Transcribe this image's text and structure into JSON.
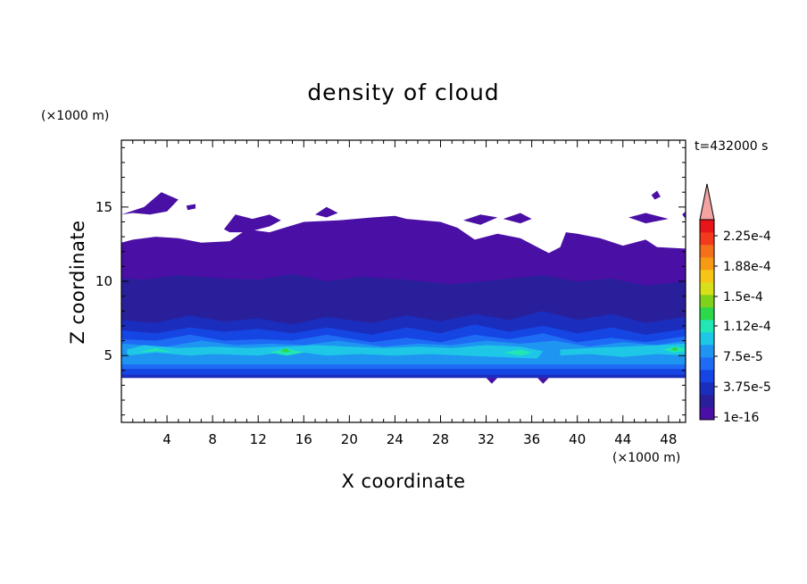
{
  "chart_data": {
    "type": "heatmap",
    "title": "density of cloud",
    "time_label": "t=432000 s",
    "xlabel": "X coordinate",
    "ylabel": "Z coordinate",
    "x_unit": "(×1000 m)",
    "y_unit": "(×1000 m)",
    "xlim": [
      0,
      49.5
    ],
    "ylim": [
      0.5,
      19.5
    ],
    "x_ticks": [
      4,
      8,
      12,
      16,
      20,
      24,
      28,
      32,
      36,
      40,
      44,
      48
    ],
    "y_ticks": [
      5,
      10,
      15
    ],
    "colorbar": {
      "labels": [
        "2.25e-4",
        "1.88e-4",
        "1.5e-4",
        "1.12e-4",
        "7.5e-5",
        "3.75e-5",
        "1e-16"
      ],
      "colors": [
        "#4a0fa5",
        "#2a1f9a",
        "#1a2dbd",
        "#1545e3",
        "#1e6cf5",
        "#1f95f2",
        "#1ec7e6",
        "#22e6b4",
        "#2cd84a",
        "#7ed21c",
        "#d8e01a",
        "#f6c515",
        "#f59a12",
        "#f4701a",
        "#f23a1c",
        "#e8151a"
      ],
      "extend_color": "#f4a3a3"
    },
    "layers": [
      {
        "level": 0,
        "bounds": [
          [
            0,
            3.5
          ],
          [
            49.5,
            3.5
          ],
          [
            49.5,
            12.2
          ],
          [
            47,
            12.3
          ],
          [
            46,
            12.8
          ],
          [
            44,
            12.4
          ],
          [
            42,
            12.9
          ],
          [
            40,
            13.2
          ],
          [
            39,
            13.3
          ],
          [
            38.5,
            12.3
          ],
          [
            37.5,
            11.9
          ],
          [
            36.5,
            12.3
          ],
          [
            35,
            12.9
          ],
          [
            33,
            13.2
          ],
          [
            31,
            12.8
          ],
          [
            29.5,
            13.6
          ],
          [
            28,
            14
          ],
          [
            25,
            14.2
          ],
          [
            24,
            14.4
          ],
          [
            22,
            14.3
          ],
          [
            19,
            14.1
          ],
          [
            16,
            14
          ],
          [
            13,
            13.3
          ],
          [
            11,
            13.5
          ],
          [
            9.5,
            12.7
          ],
          [
            7,
            12.6
          ],
          [
            5,
            12.9
          ],
          [
            3,
            13
          ],
          [
            1,
            12.8
          ],
          [
            0,
            12.6
          ]
        ]
      },
      {
        "level": 0,
        "bounds": [
          [
            0,
            14.5
          ],
          [
            2,
            15
          ],
          [
            3.5,
            16
          ],
          [
            5,
            15.5
          ],
          [
            4,
            14.7
          ],
          [
            2.5,
            14.5
          ],
          [
            1,
            14.6
          ]
        ]
      },
      {
        "level": 0,
        "bounds": [
          [
            5.7,
            15.1
          ],
          [
            6.5,
            15.2
          ],
          [
            6.5,
            14.9
          ],
          [
            5.8,
            14.8
          ]
        ]
      },
      {
        "level": 0,
        "bounds": [
          [
            9,
            13.5
          ],
          [
            10,
            14.5
          ],
          [
            11.5,
            14.2
          ],
          [
            13,
            14.5
          ],
          [
            14,
            14.1
          ],
          [
            13,
            13.7
          ],
          [
            11,
            13.3
          ],
          [
            9.5,
            13.3
          ]
        ]
      },
      {
        "level": 0,
        "bounds": [
          [
            17,
            14.5
          ],
          [
            18,
            15
          ],
          [
            19,
            14.6
          ],
          [
            18,
            14.3
          ]
        ]
      },
      {
        "level": 0,
        "bounds": [
          [
            30,
            14.1
          ],
          [
            31.5,
            14.5
          ],
          [
            33,
            14.3
          ],
          [
            31.5,
            13.8
          ]
        ]
      },
      {
        "level": 0,
        "bounds": [
          [
            33.5,
            14.2
          ],
          [
            35,
            14.6
          ],
          [
            36,
            14.2
          ],
          [
            35,
            13.9
          ]
        ]
      },
      {
        "level": 0,
        "bounds": [
          [
            44.5,
            14.3
          ],
          [
            46,
            14.6
          ],
          [
            48,
            14.2
          ],
          [
            46,
            13.9
          ]
        ]
      },
      {
        "level": 0,
        "bounds": [
          [
            46.5,
            15.8
          ],
          [
            47,
            16.1
          ],
          [
            47.3,
            15.7
          ],
          [
            46.8,
            15.5
          ]
        ]
      },
      {
        "level": 0,
        "bounds": [
          [
            49.2,
            14.5
          ],
          [
            49.5,
            14.7
          ],
          [
            49.5,
            14.2
          ]
        ]
      },
      {
        "level": 0,
        "bounds": [
          [
            32,
            3.5
          ],
          [
            32.5,
            3.1
          ],
          [
            33,
            3.5
          ]
        ]
      },
      {
        "level": 0,
        "bounds": [
          [
            36.5,
            3.5
          ],
          [
            37,
            3.1
          ],
          [
            37.5,
            3.5
          ]
        ]
      },
      {
        "level": 1,
        "bounds": [
          [
            0,
            3.5
          ],
          [
            49.5,
            3.5
          ],
          [
            49.5,
            10
          ],
          [
            46,
            9.7
          ],
          [
            43,
            10.2
          ],
          [
            40,
            10
          ],
          [
            37,
            10.4
          ],
          [
            33,
            10.1
          ],
          [
            29,
            9.8
          ],
          [
            25,
            10.1
          ],
          [
            21,
            10.3
          ],
          [
            18,
            10
          ],
          [
            15,
            10.5
          ],
          [
            12,
            10.1
          ],
          [
            9,
            10.2
          ],
          [
            5,
            10.4
          ],
          [
            2,
            10.1
          ],
          [
            0,
            10.2
          ]
        ]
      },
      {
        "level": 2,
        "bounds": [
          [
            0,
            3.5
          ],
          [
            49.5,
            3.5
          ],
          [
            49.5,
            7.6
          ],
          [
            46,
            7.2
          ],
          [
            43,
            7.8
          ],
          [
            40,
            7.4
          ],
          [
            37,
            8
          ],
          [
            34,
            7.4
          ],
          [
            31,
            7.8
          ],
          [
            28,
            7.3
          ],
          [
            25,
            7.7
          ],
          [
            22,
            7.2
          ],
          [
            18,
            7.6
          ],
          [
            15,
            7.1
          ],
          [
            12,
            7.5
          ],
          [
            9,
            7.3
          ],
          [
            6,
            7.7
          ],
          [
            3,
            7.2
          ],
          [
            0,
            7.4
          ]
        ]
      },
      {
        "level": 3,
        "bounds": [
          [
            0,
            3.7
          ],
          [
            49.5,
            3.7
          ],
          [
            49.5,
            6.8
          ],
          [
            46,
            6.4
          ],
          [
            43,
            6.9
          ],
          [
            40,
            6.5
          ],
          [
            37,
            7
          ],
          [
            34,
            6.6
          ],
          [
            31,
            7.1
          ],
          [
            28,
            6.5
          ],
          [
            25,
            6.9
          ],
          [
            22,
            6.4
          ],
          [
            18,
            6.9
          ],
          [
            15,
            6.5
          ],
          [
            12,
            6.8
          ],
          [
            9,
            6.6
          ],
          [
            6,
            6.9
          ],
          [
            3,
            6.5
          ],
          [
            0,
            6.7
          ]
        ]
      },
      {
        "level": 4,
        "bounds": [
          [
            0,
            4.1
          ],
          [
            49.5,
            4.1
          ],
          [
            49.5,
            6.3
          ],
          [
            46,
            5.9
          ],
          [
            43,
            6.2
          ],
          [
            40,
            5.9
          ],
          [
            37,
            6.5
          ],
          [
            34,
            6.1
          ],
          [
            31,
            6.4
          ],
          [
            28,
            5.9
          ],
          [
            25,
            6.2
          ],
          [
            22,
            5.9
          ],
          [
            18,
            6.4
          ],
          [
            15,
            6
          ],
          [
            12,
            6.1
          ],
          [
            9,
            6
          ],
          [
            6,
            6.4
          ],
          [
            3,
            6
          ],
          [
            0,
            6.1
          ]
        ]
      },
      {
        "level": 5,
        "bounds": [
          [
            0,
            4.4
          ],
          [
            49.5,
            4.4
          ],
          [
            49.5,
            6
          ],
          [
            47,
            5.7
          ],
          [
            44,
            5.9
          ],
          [
            41,
            5.6
          ],
          [
            38,
            6
          ],
          [
            35,
            5.8
          ],
          [
            32,
            6
          ],
          [
            29,
            5.7
          ],
          [
            26,
            5.8
          ],
          [
            23,
            5.6
          ],
          [
            19,
            6
          ],
          [
            16,
            5.7
          ],
          [
            13,
            5.8
          ],
          [
            10,
            5.7
          ],
          [
            7,
            6
          ],
          [
            4,
            5.6
          ],
          [
            0,
            5.8
          ]
        ]
      },
      {
        "level": 6,
        "bounds": [
          [
            0.5,
            5
          ],
          [
            3,
            5.2
          ],
          [
            6,
            5
          ],
          [
            8,
            5.1
          ],
          [
            12,
            5
          ],
          [
            15,
            5.3
          ],
          [
            18,
            5
          ],
          [
            21,
            5.1
          ],
          [
            24,
            5
          ],
          [
            27,
            5.1
          ],
          [
            30,
            5
          ],
          [
            33,
            4.9
          ],
          [
            36.5,
            4.8
          ],
          [
            37,
            5.3
          ],
          [
            35,
            5.6
          ],
          [
            32,
            5.7
          ],
          [
            29,
            5.5
          ],
          [
            26,
            5.6
          ],
          [
            23,
            5.5
          ],
          [
            20,
            5.6
          ],
          [
            17,
            5.7
          ],
          [
            14,
            5.6
          ],
          [
            11,
            5.5
          ],
          [
            8,
            5.6
          ],
          [
            5,
            5.5
          ],
          [
            2,
            5.7
          ],
          [
            0.5,
            5.4
          ]
        ]
      },
      {
        "level": 6,
        "bounds": [
          [
            38.5,
            5
          ],
          [
            41,
            5.1
          ],
          [
            44,
            4.9
          ],
          [
            47,
            5.1
          ],
          [
            49.5,
            5
          ],
          [
            49.5,
            5.8
          ],
          [
            47,
            5.7
          ],
          [
            44,
            5.6
          ],
          [
            41,
            5.5
          ],
          [
            38.5,
            5.4
          ]
        ]
      },
      {
        "level": 7,
        "bounds": [
          [
            1.5,
            5.2
          ],
          [
            3,
            5.3
          ],
          [
            4.5,
            5.2
          ],
          [
            3,
            5.5
          ]
        ]
      },
      {
        "level": 7,
        "bounds": [
          [
            13,
            5.2
          ],
          [
            14.5,
            5.5
          ],
          [
            16,
            5.2
          ],
          [
            14.5,
            5
          ]
        ]
      },
      {
        "level": 7,
        "bounds": [
          [
            33.5,
            5.2
          ],
          [
            35,
            5.4
          ],
          [
            36,
            5.2
          ],
          [
            35,
            5
          ]
        ]
      },
      {
        "level": 7,
        "bounds": [
          [
            47.5,
            5.4
          ],
          [
            48.5,
            5.6
          ],
          [
            49.5,
            5.5
          ],
          [
            49.5,
            5.3
          ],
          [
            48.5,
            5.2
          ]
        ]
      },
      {
        "level": 8,
        "bounds": [
          [
            48.2,
            5.4
          ],
          [
            48.6,
            5.6
          ],
          [
            48.9,
            5.4
          ],
          [
            48.6,
            5.3
          ]
        ]
      },
      {
        "level": 8,
        "bounds": [
          [
            14,
            5.3
          ],
          [
            14.4,
            5.5
          ],
          [
            14.8,
            5.3
          ],
          [
            14.4,
            5.2
          ]
        ]
      }
    ]
  }
}
